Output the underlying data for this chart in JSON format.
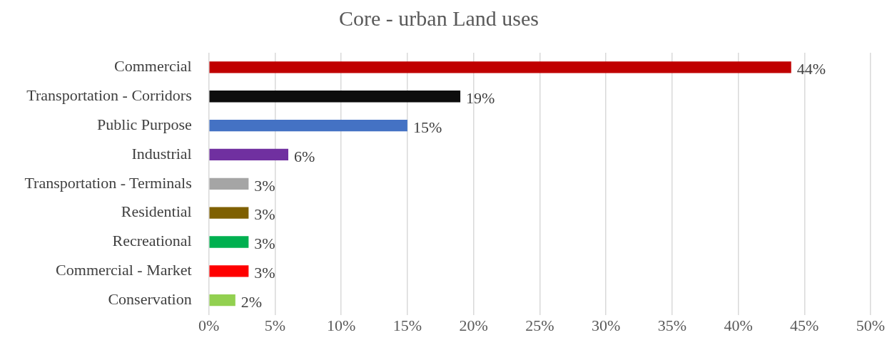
{
  "chart_data": {
    "type": "bar",
    "orientation": "horizontal",
    "title": "Core - urban Land uses",
    "categories": [
      "Commercial",
      "Transportation - Corridors",
      "Public Purpose",
      "Industrial",
      "Transportation - Terminals",
      "Residential",
      "Recreational",
      "Commercial - Market",
      "Conservation"
    ],
    "values": [
      44,
      19,
      15,
      6,
      3,
      3,
      3,
      3,
      2
    ],
    "value_labels": [
      "44%",
      "19%",
      "15%",
      "6%",
      "3%",
      "3%",
      "3%",
      "3%",
      "2%"
    ],
    "colors": [
      "#c00000",
      "#0d0d0d",
      "#4472c4",
      "#7030a0",
      "#a5a5a5",
      "#7f6000",
      "#00b050",
      "#ff0000",
      "#92d050"
    ],
    "xlim": [
      0,
      50
    ],
    "xticks": [
      {
        "value": 0,
        "label": "0%"
      },
      {
        "value": 5,
        "label": "5%"
      },
      {
        "value": 10,
        "label": "10%"
      },
      {
        "value": 15,
        "label": "15%"
      },
      {
        "value": 20,
        "label": "20%"
      },
      {
        "value": 25,
        "label": "25%"
      },
      {
        "value": 30,
        "label": "30%"
      },
      {
        "value": 35,
        "label": "35%"
      },
      {
        "value": 40,
        "label": "40%"
      },
      {
        "value": 45,
        "label": "45%"
      },
      {
        "value": 50,
        "label": "50%"
      }
    ],
    "grid": "x",
    "legend": false
  }
}
